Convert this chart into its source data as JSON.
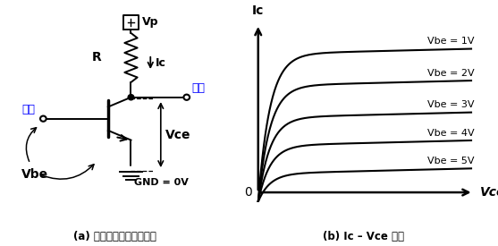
{
  "fig_width": 5.57,
  "fig_height": 2.75,
  "bg_color": "#ffffff",
  "left_label": "(a) エミッタ接地増幅回路",
  "right_label": "(b) Ic – Vce 特性",
  "curves": [
    {
      "vbe": "Vbe = 5V",
      "isat": 0.92
    },
    {
      "vbe": "Vbe = 4V",
      "isat": 0.74
    },
    {
      "vbe": "Vbe = 3V",
      "isat": 0.56
    },
    {
      "vbe": "Vbe = 2V",
      "isat": 0.38
    },
    {
      "vbe": "Vbe = 1V",
      "isat": 0.2
    }
  ]
}
